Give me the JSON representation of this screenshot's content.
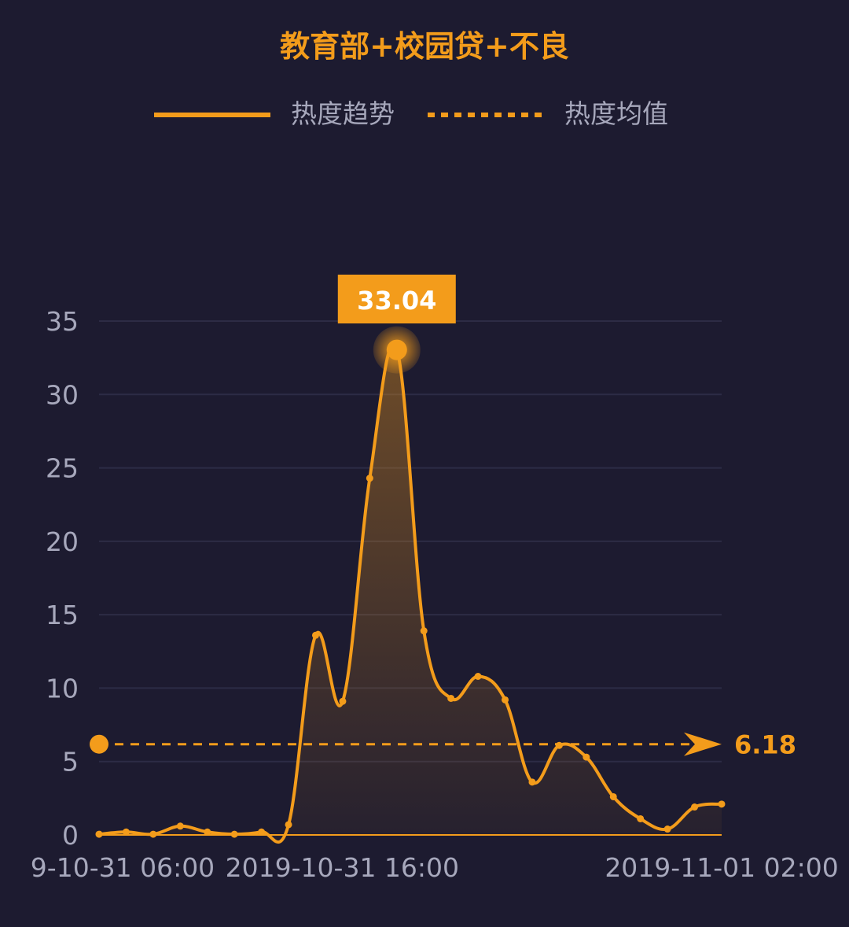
{
  "colors": {
    "background": "#1d1b30",
    "accent": "#f39c1b",
    "title": "#f39c1b",
    "legend_text": "#a7a8bc",
    "axis_text": "#a7a8bc",
    "grid": "#2d2c45",
    "peak_label_text": "#ffffff"
  },
  "chart_data": {
    "type": "line",
    "title": "教育部+校园贷+不良",
    "legend": [
      {
        "label": "热度趋势",
        "style": "solid"
      },
      {
        "label": "热度均值",
        "style": "dashed"
      }
    ],
    "x_tick_labels": [
      "9-10-31 06:00",
      "2019-10-31 16:00",
      "2019-11-01 02:00"
    ],
    "y_ticks": [
      "0",
      "5",
      "10",
      "15",
      "20",
      "25",
      "30",
      "35"
    ],
    "ylim": [
      0,
      35
    ],
    "grid": true,
    "series": [
      {
        "name": "热度趋势",
        "values": [
          0.05,
          0.2,
          0.05,
          0.6,
          0.2,
          0.05,
          0.2,
          0.7,
          13.6,
          9.1,
          24.3,
          33.04,
          13.9,
          9.3,
          10.8,
          9.2,
          3.6,
          6.1,
          5.3,
          2.6,
          1.1,
          0.4,
          1.9,
          2.1
        ]
      }
    ],
    "peak": {
      "index": 11,
      "label": "33.04"
    },
    "average": {
      "value": 6.18,
      "label": "6.18"
    }
  }
}
